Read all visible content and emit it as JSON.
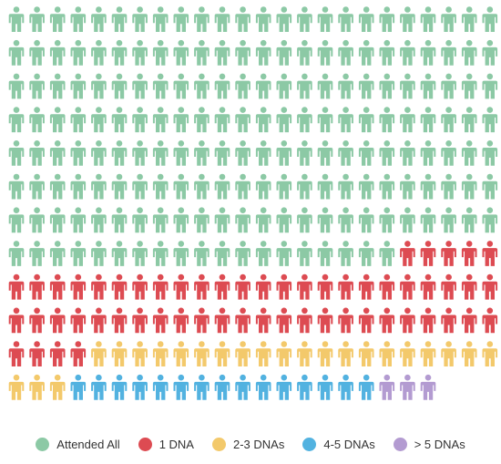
{
  "chart_data": {
    "type": "pictogram",
    "title": "",
    "rows": 12,
    "columns": 24,
    "fill_order": "row-major, left-to-right, top-to-bottom",
    "series": [
      {
        "name": "Attended All",
        "value": 187,
        "color": "#8cc9a5",
        "icon": "person-icon"
      },
      {
        "name": "1 DNA",
        "value": 57,
        "color": "#dd4b52",
        "icon": "person-icon"
      },
      {
        "name": "2-3 DNAs",
        "value": 23,
        "color": "#f3c96b",
        "icon": "person-icon"
      },
      {
        "name": "4-5 DNAs",
        "value": 15,
        "color": "#52b2e0",
        "icon": "person-icon"
      },
      {
        "name": "> 5 DNAs",
        "value": 3,
        "color": "#b39bd1",
        "icon": "person-icon"
      }
    ],
    "legend_position": "bottom-center"
  }
}
